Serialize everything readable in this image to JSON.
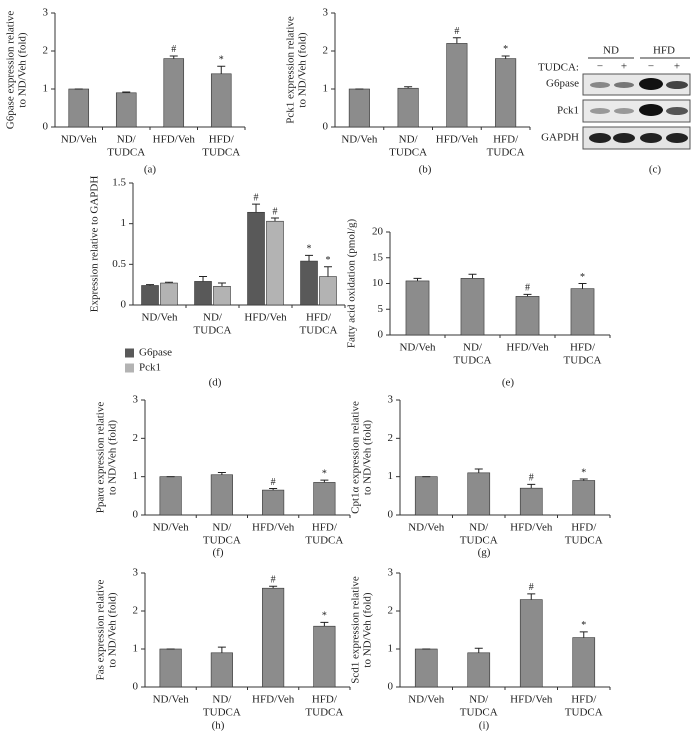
{
  "chart_data": [
    {
      "type": "bar",
      "label": "(a)",
      "ylabel": [
        "G6pase expression relative",
        "to ND/Veh (fold)"
      ],
      "categories": [
        [
          "ND/Veh"
        ],
        [
          "ND/",
          "TUDCA"
        ],
        [
          "HFD/Veh"
        ],
        [
          "HFD/",
          "TUDCA"
        ]
      ],
      "values": [
        1.0,
        0.9,
        1.8,
        1.4
      ],
      "errors": [
        0,
        0.02,
        0.07,
        0.2
      ],
      "markers": [
        null,
        null,
        "#",
        "*"
      ],
      "color": "#8c8c8c",
      "ylim": [
        0,
        3
      ],
      "yticks": [
        0,
        1,
        2,
        3
      ]
    },
    {
      "type": "bar",
      "label": "(b)",
      "ylabel": [
        "Pck1 expression relative",
        "to ND/Veh (fold)"
      ],
      "categories": [
        [
          "ND/Veh"
        ],
        [
          "ND/",
          "TUDCA"
        ],
        [
          "HFD/Veh"
        ],
        [
          "HFD/",
          "TUDCA"
        ]
      ],
      "values": [
        1.0,
        1.02,
        2.2,
        1.8
      ],
      "errors": [
        0,
        0.04,
        0.15,
        0.07
      ],
      "markers": [
        null,
        null,
        "#",
        "*"
      ],
      "color": "#8c8c8c",
      "ylim": [
        0,
        3
      ],
      "yticks": [
        0,
        1,
        2,
        3
      ]
    },
    {
      "type": "bar",
      "label": "(d)",
      "ylabel": [
        "Expression relative to GAPDH"
      ],
      "categories": [
        [
          "ND/Veh"
        ],
        [
          "ND/",
          "TUDCA"
        ],
        [
          "HFD/Veh"
        ],
        [
          "HFD/",
          "TUDCA"
        ]
      ],
      "series": [
        {
          "name": "G6pase",
          "color": "#595959",
          "values": [
            0.24,
            0.29,
            1.14,
            0.54
          ],
          "errors": [
            0.01,
            0.06,
            0.1,
            0.07
          ],
          "markers": [
            null,
            null,
            "#",
            "*"
          ]
        },
        {
          "name": "Pck1",
          "color": "#b3b3b3",
          "values": [
            0.27,
            0.23,
            1.03,
            0.35
          ],
          "errors": [
            0.01,
            0.04,
            0.04,
            0.12
          ],
          "markers": [
            null,
            null,
            "#",
            "*"
          ]
        }
      ],
      "legend": "below",
      "ylim": [
        0,
        1.5
      ],
      "yticks": [
        0,
        0.5,
        1,
        1.5
      ]
    },
    {
      "type": "bar",
      "label": "(e)",
      "ylabel": [
        "Fatty acid oxidation (pmol/g)"
      ],
      "categories": [
        [
          "ND/Veh"
        ],
        [
          "ND/",
          "TUDCA"
        ],
        [
          "HFD/Veh"
        ],
        [
          "HFD/",
          "TUDCA"
        ]
      ],
      "values": [
        10.5,
        11,
        7.5,
        9
      ],
      "errors": [
        0.5,
        0.8,
        0.4,
        1.0
      ],
      "markers": [
        null,
        null,
        "#",
        "*"
      ],
      "color": "#8c8c8c",
      "ylim": [
        0,
        20
      ],
      "yticks": [
        0,
        5,
        10,
        15,
        20
      ]
    },
    {
      "type": "bar",
      "label": "(f)",
      "ylabel": [
        "Pparα expression relative",
        "to ND/Veh (fold)"
      ],
      "categories": [
        [
          "ND/Veh"
        ],
        [
          "ND/",
          "TUDCA"
        ],
        [
          "HFD/Veh"
        ],
        [
          "HFD/",
          "TUDCA"
        ]
      ],
      "values": [
        1.0,
        1.05,
        0.65,
        0.85
      ],
      "errors": [
        0,
        0.06,
        0.04,
        0.06
      ],
      "markers": [
        null,
        null,
        "#",
        "*"
      ],
      "color": "#8c8c8c",
      "ylim": [
        0,
        3
      ],
      "yticks": [
        0,
        1,
        2,
        3
      ]
    },
    {
      "type": "bar",
      "label": "(g)",
      "ylabel": [
        "Cpt1α expression relative",
        "to ND/Veh (fold)"
      ],
      "categories": [
        [
          "ND/Veh"
        ],
        [
          "ND/",
          "TUDCA"
        ],
        [
          "HFD/Veh"
        ],
        [
          "HFD/",
          "TUDCA"
        ]
      ],
      "values": [
        1.0,
        1.1,
        0.7,
        0.9
      ],
      "errors": [
        0,
        0.1,
        0.1,
        0.04
      ],
      "markers": [
        null,
        null,
        "#",
        "*"
      ],
      "color": "#8c8c8c",
      "ylim": [
        0,
        3
      ],
      "yticks": [
        0,
        1,
        2,
        3
      ]
    },
    {
      "type": "bar",
      "label": "(h)",
      "ylabel": [
        "Fas expression relative",
        "to ND/Veh (fold)"
      ],
      "categories": [
        [
          "ND/Veh"
        ],
        [
          "ND/",
          "TUDCA"
        ],
        [
          "HFD/Veh"
        ],
        [
          "HFD/",
          "TUDCA"
        ]
      ],
      "values": [
        1.0,
        0.9,
        2.6,
        1.6
      ],
      "errors": [
        0,
        0.15,
        0.05,
        0.1
      ],
      "markers": [
        null,
        null,
        "#",
        "*"
      ],
      "color": "#8c8c8c",
      "ylim": [
        0,
        3
      ],
      "yticks": [
        0,
        1,
        2,
        3
      ]
    },
    {
      "type": "bar",
      "label": "(i)",
      "ylabel": [
        "Scd1 expression relative",
        "to ND/Veh (fold)"
      ],
      "categories": [
        [
          "ND/Veh"
        ],
        [
          "ND/",
          "TUDCA"
        ],
        [
          "HFD/Veh"
        ],
        [
          "HFD/",
          "TUDCA"
        ]
      ],
      "values": [
        1.0,
        0.9,
        2.3,
        1.3
      ],
      "errors": [
        0,
        0.12,
        0.15,
        0.15
      ],
      "markers": [
        null,
        null,
        "#",
        "*"
      ],
      "color": "#8c8c8c",
      "ylim": [
        0,
        3
      ],
      "yticks": [
        0,
        1,
        2,
        3
      ]
    }
  ],
  "blot": {
    "label": "(c)",
    "groups": [
      "ND",
      "HFD"
    ],
    "treatment_label": "TUDCA:",
    "treatments": [
      "−",
      "+",
      "−",
      "+"
    ],
    "rows": [
      "G6pase",
      "Pck1",
      "GAPDH"
    ]
  }
}
